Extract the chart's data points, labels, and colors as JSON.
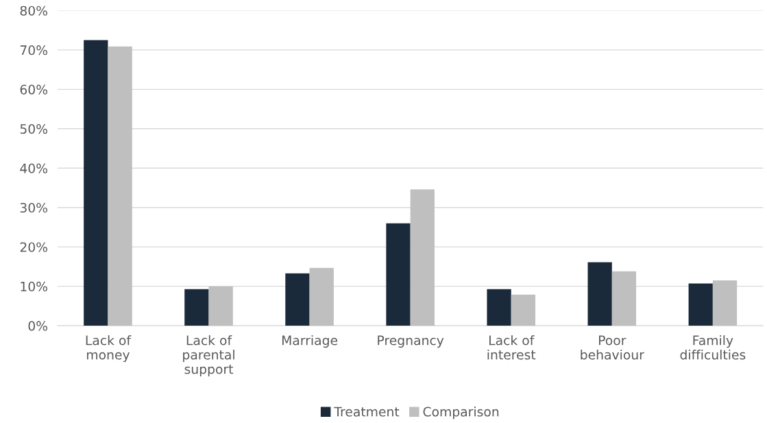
{
  "chart_data": {
    "type": "bar",
    "categories": [
      "Lack of\nmoney",
      "Lack of\nparental\nsupport",
      "Marriage",
      "Pregnancy",
      "Lack of\ninterest",
      "Poor\nbehaviour",
      "Family\ndifficulties"
    ],
    "series": [
      {
        "name": "Treatment",
        "color": "#1b2a3a",
        "values": [
          72.5,
          9.3,
          13.3,
          26.0,
          9.3,
          16.1,
          10.7
        ]
      },
      {
        "name": "Comparison",
        "color": "#bfbfbf",
        "values": [
          70.9,
          10.0,
          14.7,
          34.6,
          7.9,
          13.8,
          11.5
        ]
      }
    ],
    "ylim": [
      0,
      80
    ],
    "yticks": [
      {
        "value": 0,
        "label": "0%"
      },
      {
        "value": 10,
        "label": "10%"
      },
      {
        "value": 20,
        "label": "20%"
      },
      {
        "value": 30,
        "label": "30%"
      },
      {
        "value": 40,
        "label": "40%"
      },
      {
        "value": 50,
        "label": "50%"
      },
      {
        "value": 60,
        "label": "60%"
      },
      {
        "value": 70,
        "label": "70%"
      },
      {
        "value": 80,
        "label": "80%"
      }
    ],
    "grid": "y",
    "legend": "bottom"
  }
}
